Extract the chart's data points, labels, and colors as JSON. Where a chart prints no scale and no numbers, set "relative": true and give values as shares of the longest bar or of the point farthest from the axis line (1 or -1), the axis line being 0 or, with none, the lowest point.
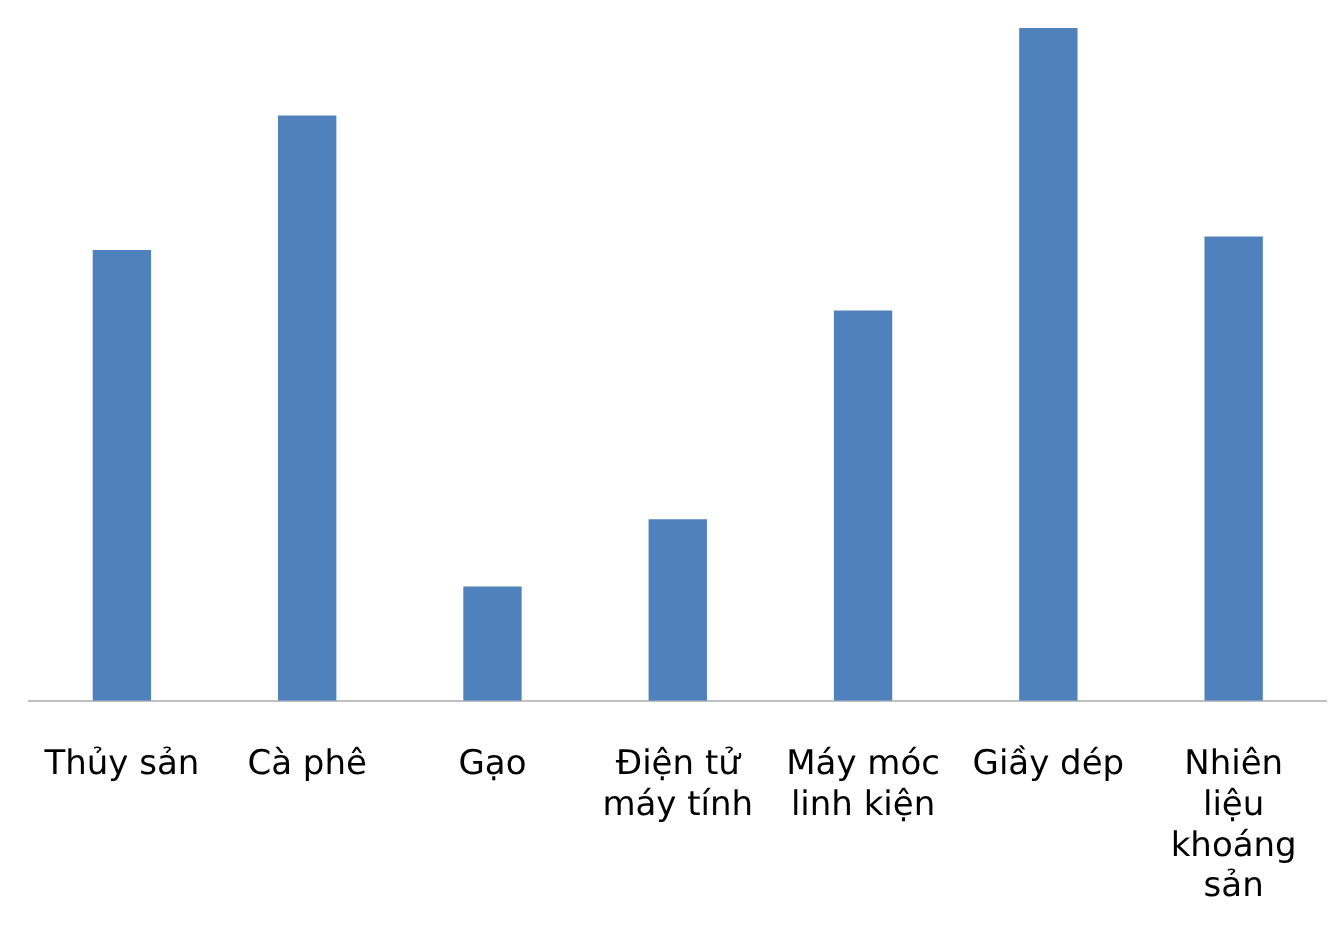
{
  "chart_data": {
    "type": "bar",
    "relative": true,
    "categories": [
      "Thủy sản",
      "Cà phê",
      "Gạo",
      "Điện tử máy tính",
      "Máy móc linh kiện",
      "Giầy dép",
      "Nhiên liệu khoáng sản"
    ],
    "series": [
      {
        "color": "#4f81bd",
        "values": [
          0.67,
          0.87,
          0.17,
          0.27,
          0.58,
          1,
          0.69
        ]
      }
    ],
    "grid": false,
    "legend": false
  }
}
